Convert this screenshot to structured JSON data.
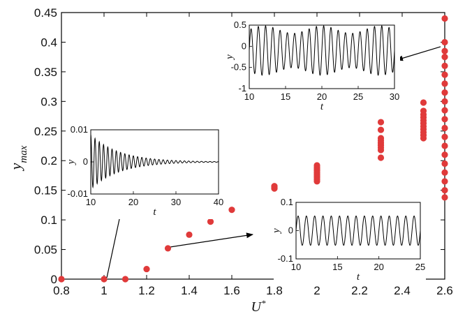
{
  "chart_data": {
    "type": "scatter",
    "xlabel": "U*",
    "ylabel": "y_max",
    "xlim": [
      0.8,
      2.6
    ],
    "ylim": [
      0,
      0.45
    ],
    "x_ticks": [
      "0.8",
      "1",
      "1.2",
      "1.4",
      "1.6",
      "1.8",
      "2",
      "2.2",
      "2.4",
      "2.6"
    ],
    "y_ticks": [
      "0",
      "0.05",
      "0.1",
      "0.15",
      "0.2",
      "0.25",
      "0.3",
      "0.35",
      "0.4",
      "0.45"
    ],
    "grid": false,
    "marker_color": "#e03a3a",
    "points": [
      {
        "x": 0.8,
        "y": 0.0
      },
      {
        "x": 1.0,
        "y": 0.0
      },
      {
        "x": 1.1,
        "y": 0.0
      },
      {
        "x": 1.2,
        "y": 0.017
      },
      {
        "x": 1.3,
        "y": 0.052
      },
      {
        "x": 1.4,
        "y": 0.075
      },
      {
        "x": 1.5,
        "y": 0.097
      },
      {
        "x": 1.6,
        "y": 0.117
      },
      {
        "x": 1.8,
        "y": 0.153
      },
      {
        "x": 1.8,
        "y": 0.155
      },
      {
        "x": 1.8,
        "y": 0.157
      },
      {
        "x": 2.0,
        "y": 0.165
      },
      {
        "x": 2.0,
        "y": 0.168
      },
      {
        "x": 2.0,
        "y": 0.171
      },
      {
        "x": 2.0,
        "y": 0.174
      },
      {
        "x": 2.0,
        "y": 0.177
      },
      {
        "x": 2.0,
        "y": 0.18
      },
      {
        "x": 2.0,
        "y": 0.183
      },
      {
        "x": 2.0,
        "y": 0.186
      },
      {
        "x": 2.0,
        "y": 0.189
      },
      {
        "x": 2.0,
        "y": 0.192
      },
      {
        "x": 2.3,
        "y": 0.205
      },
      {
        "x": 2.3,
        "y": 0.218
      },
      {
        "x": 2.3,
        "y": 0.222
      },
      {
        "x": 2.3,
        "y": 0.226
      },
      {
        "x": 2.3,
        "y": 0.23
      },
      {
        "x": 2.3,
        "y": 0.234
      },
      {
        "x": 2.3,
        "y": 0.238
      },
      {
        "x": 2.3,
        "y": 0.252
      },
      {
        "x": 2.3,
        "y": 0.265
      },
      {
        "x": 2.3,
        "y": 0.295
      },
      {
        "x": 2.5,
        "y": 0.238
      },
      {
        "x": 2.5,
        "y": 0.243
      },
      {
        "x": 2.5,
        "y": 0.248
      },
      {
        "x": 2.5,
        "y": 0.253
      },
      {
        "x": 2.5,
        "y": 0.258
      },
      {
        "x": 2.5,
        "y": 0.263
      },
      {
        "x": 2.5,
        "y": 0.268
      },
      {
        "x": 2.5,
        "y": 0.273
      },
      {
        "x": 2.5,
        "y": 0.278
      },
      {
        "x": 2.5,
        "y": 0.284
      },
      {
        "x": 2.5,
        "y": 0.298
      },
      {
        "x": 2.6,
        "y": 0.138
      },
      {
        "x": 2.6,
        "y": 0.15
      },
      {
        "x": 2.6,
        "y": 0.165
      },
      {
        "x": 2.6,
        "y": 0.18
      },
      {
        "x": 2.6,
        "y": 0.195
      },
      {
        "x": 2.6,
        "y": 0.21
      },
      {
        "x": 2.6,
        "y": 0.225
      },
      {
        "x": 2.6,
        "y": 0.24
      },
      {
        "x": 2.6,
        "y": 0.255
      },
      {
        "x": 2.6,
        "y": 0.27
      },
      {
        "x": 2.6,
        "y": 0.285
      },
      {
        "x": 2.6,
        "y": 0.3
      },
      {
        "x": 2.6,
        "y": 0.315
      },
      {
        "x": 2.6,
        "y": 0.33
      },
      {
        "x": 2.6,
        "y": 0.345
      },
      {
        "x": 2.6,
        "y": 0.36
      },
      {
        "x": 2.6,
        "y": 0.375
      },
      {
        "x": 2.6,
        "y": 0.385
      },
      {
        "x": 2.6,
        "y": 0.4
      },
      {
        "x": 2.6,
        "y": 0.44
      }
    ],
    "insets": [
      {
        "xlabel": "t",
        "ylabel": "y",
        "xlim": [
          10,
          40
        ],
        "ylim": [
          -0.01,
          0.01
        ],
        "x_ticks": [
          "10",
          "20",
          "30",
          "40"
        ],
        "y_ticks": [
          "-0.01",
          "0",
          "0.01"
        ],
        "signal": {
          "type": "decaying_sine",
          "amplitude": 0.0085,
          "period": 1.0,
          "decay": 0.15
        },
        "arrow_from": {
          "x": 1.0,
          "y": 0.0
        }
      },
      {
        "xlabel": "t",
        "ylabel": "y",
        "xlim": [
          10,
          30
        ],
        "ylim": [
          -1,
          0.5
        ],
        "x_ticks": [
          "10",
          "15",
          "20",
          "25",
          "30"
        ],
        "y_ticks": [
          "-1",
          "-0.5",
          "0",
          "0.5"
        ],
        "signal": {
          "type": "beating_sine",
          "amplitude": 0.32,
          "period": 1.0,
          "offset": -0.1
        },
        "arrow_from": {
          "x": 2.6,
          "y": 0.39
        }
      },
      {
        "xlabel": "t",
        "ylabel": "y",
        "xlim": [
          10,
          25
        ],
        "ylim": [
          -0.1,
          0.1
        ],
        "x_ticks": [
          "10",
          "15",
          "20",
          "25"
        ],
        "y_ticks": [
          "-0.1",
          "0",
          "0.1"
        ],
        "signal": {
          "type": "sine",
          "amplitude": 0.052,
          "period": 1.0
        },
        "arrow_from": {
          "x": 1.3,
          "y": 0.052
        }
      }
    ]
  }
}
